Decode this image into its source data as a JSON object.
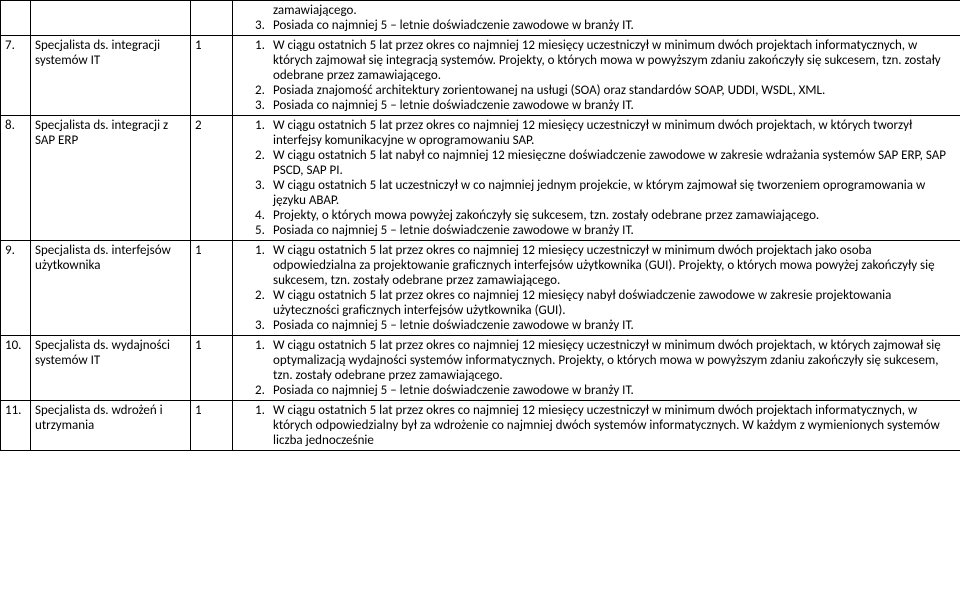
{
  "rows": [
    {
      "num": "",
      "role": "",
      "qty": "",
      "items": [
        {
          "n": "",
          "text": "zamawiającego.",
          "indent": true,
          "nonum": true
        },
        {
          "n": "3.",
          "text": "Posiada co najmniej 5 – letnie doświadczenie zawodowe w branży IT."
        }
      ]
    },
    {
      "num": "7.",
      "role": "Specjalista ds. integracji systemów IT",
      "qty": "1",
      "items": [
        {
          "n": "1.",
          "text": "W ciągu ostatnich 5 lat przez okres co najmniej 12 miesięcy uczestniczył w minimum dwóch projektach informatycznych, w których zajmował się integracją systemów. Projekty, o których mowa w powyższym zdaniu zakończyły się sukcesem, tzn. zostały odebrane przez zamawiającego."
        },
        {
          "n": "2.",
          "text": "Posiada znajomość architektury zorientowanej na usługi (SOA) oraz standardów SOAP, UDDI, WSDL, XML."
        },
        {
          "n": "3.",
          "text": "Posiada co najmniej 5 – letnie doświadczenie zawodowe w branży IT."
        }
      ]
    },
    {
      "num": "8.",
      "role": "Specjalista ds. integracji z SAP ERP",
      "qty": "2",
      "items": [
        {
          "n": "1.",
          "text": "W ciągu ostatnich 5 lat przez okres co najmniej 12 miesięcy uczestniczył w minimum dwóch projektach, w których tworzył interfejsy komunikacyjne w oprogramowaniu SAP."
        },
        {
          "n": "2.",
          "text": "W ciągu ostatnich 5 lat nabył co najmniej 12 miesięczne doświadczenie zawodowe w zakresie wdrażania systemów SAP ERP, SAP PSCD, SAP PI."
        },
        {
          "n": "3.",
          "text": "W ciągu ostatnich 5 lat uczestniczył w co najmniej jednym projekcie, w którym zajmował się tworzeniem oprogramowania w języku ABAP."
        },
        {
          "n": "4.",
          "text": "Projekty, o których mowa powyżej zakończyły się sukcesem, tzn. zostały odebrane przez zamawiającego."
        },
        {
          "n": "5.",
          "text": "Posiada co najmniej 5 – letnie doświadczenie zawodowe w branży IT."
        }
      ]
    },
    {
      "num": "9.",
      "role": "Specjalista ds. interfejsów użytkownika",
      "qty": "1",
      "items": [
        {
          "n": "1.",
          "text": "W ciągu ostatnich 5 lat przez okres co najmniej 12 miesięcy uczestniczył w minimum dwóch projektach jako osoba odpowiedzialna za projektowanie graficznych interfejsów użytkownika (GUI). Projekty, o których mowa powyżej zakończyły się sukcesem, tzn. zostały odebrane przez zamawiającego."
        },
        {
          "n": "2.",
          "text": "W ciągu ostatnich 5 lat przez okres co najmniej 12 miesięcy nabył doświadczenie zawodowe w zakresie projektowania użyteczności graficznych interfejsów użytkownika (GUI)."
        },
        {
          "n": "3.",
          "text": "Posiada co najmniej 5 – letnie doświadczenie zawodowe w branży IT."
        }
      ]
    },
    {
      "num": "10.",
      "role": "Specjalista ds. wydajności systemów IT",
      "qty": "1",
      "items": [
        {
          "n": "1.",
          "text": "W ciągu ostatnich 5 lat przez okres co najmniej 12 miesięcy uczestniczył w minimum dwóch projektach, w których zajmował się optymalizacją wydajności systemów informatycznych. Projekty, o których mowa w powyższym zdaniu zakończyły się sukcesem, tzn. zostały odebrane przez zamawiającego."
        },
        {
          "n": "2.",
          "text": "Posiada co najmniej 5 – letnie doświadczenie zawodowe w branży IT."
        }
      ]
    },
    {
      "num": "11.",
      "role": "Specjalista ds. wdrożeń i utrzymania",
      "qty": "1",
      "items": [
        {
          "n": "1.",
          "text": "W ciągu ostatnich 5 lat przez okres co najmniej 12 miesięcy uczestniczył w minimum dwóch projektach informatycznych, w których odpowiedzialny był za wdrożenie co najmniej dwóch systemów informatycznych. W każdym z wymienionych systemów liczba jednocześnie"
        }
      ]
    }
  ]
}
